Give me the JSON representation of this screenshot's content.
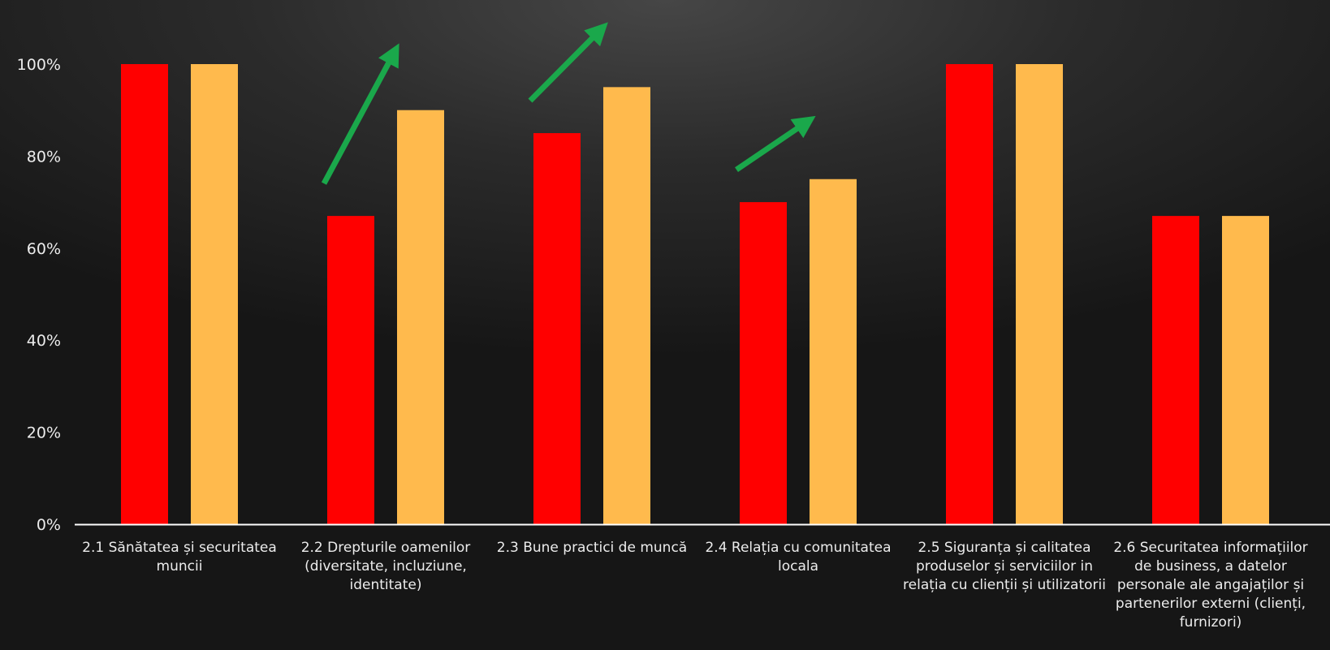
{
  "chart_data": {
    "type": "bar",
    "categories": [
      "2.1 Sănătatea și securitatea muncii",
      "2.2 Drepturile oamenilor (diversitate, incluziune, identitate)",
      "2.3 Bune practici de muncă",
      "2.4 Relația cu comunitatea locala",
      "2.5 Siguranța și calitatea produselor și serviciilor in relația cu clienții și utilizatorii",
      "2.6 Securitatea informațiilor de business, a datelor personale ale angajaților și partenerilor externi (clienți, furnizori)"
    ],
    "series": [
      {
        "color": "#ff0000",
        "values": [
          1.0,
          0.67,
          0.85,
          0.7,
          1.0,
          0.67
        ]
      },
      {
        "color": "#ffba4d",
        "values": [
          1.0,
          0.9,
          0.95,
          0.75,
          1.0,
          0.67
        ]
      }
    ],
    "ylim": [
      0,
      1
    ],
    "yticks": [
      "0%",
      "20%",
      "40%",
      "60%",
      "80%",
      "100%"
    ],
    "ytick_values": [
      0,
      0.2,
      0.4,
      0.6,
      0.8,
      1.0
    ],
    "axis_color": "#ffffff",
    "arrow_color": "#1aa84b",
    "increase_arrows_on_categories": [
      1,
      2,
      3
    ],
    "grid": false,
    "legend": "none"
  }
}
